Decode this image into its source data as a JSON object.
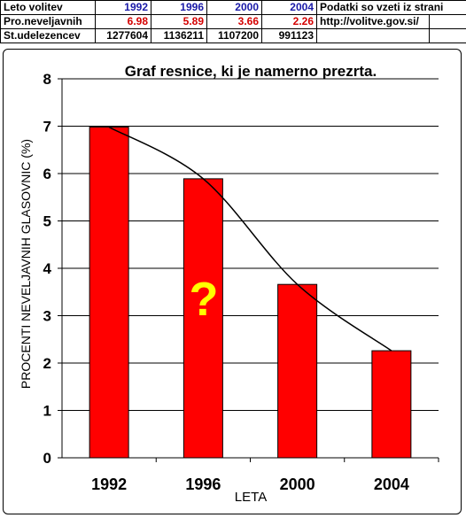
{
  "table": {
    "row1": {
      "label": "Leto volitev",
      "values": [
        "1992",
        "1996",
        "2000",
        "2004"
      ],
      "note": "Podatki so vzeti iz strani"
    },
    "row2": {
      "label": "Pro.neveljavnih",
      "values": [
        "6.98",
        "5.89",
        "3.66",
        "2.26"
      ],
      "note": "http://volitve.gov.si/"
    },
    "row3": {
      "label": "St.udelezencev",
      "values": [
        "1277604",
        "1136211",
        "1107200",
        "991123"
      ],
      "note": ""
    }
  },
  "chart_data": {
    "type": "bar",
    "title": "Graf resnice, ki je namerno prezrta.",
    "xlabel": "LETA",
    "ylabel": "PROCENTI NEVELJAVNIH GLASOVNIC (%)",
    "categories": [
      "1992",
      "1996",
      "2000",
      "2004"
    ],
    "values": [
      6.98,
      5.89,
      3.66,
      2.26
    ],
    "ylim": [
      0,
      8
    ],
    "yticks": [
      "0",
      "1",
      "2",
      "3",
      "4",
      "5",
      "6",
      "7",
      "8"
    ],
    "bar_color": "#ff0000",
    "trendline": true,
    "annotation": "?",
    "annotation_color": "#ffff00",
    "grid": true
  }
}
